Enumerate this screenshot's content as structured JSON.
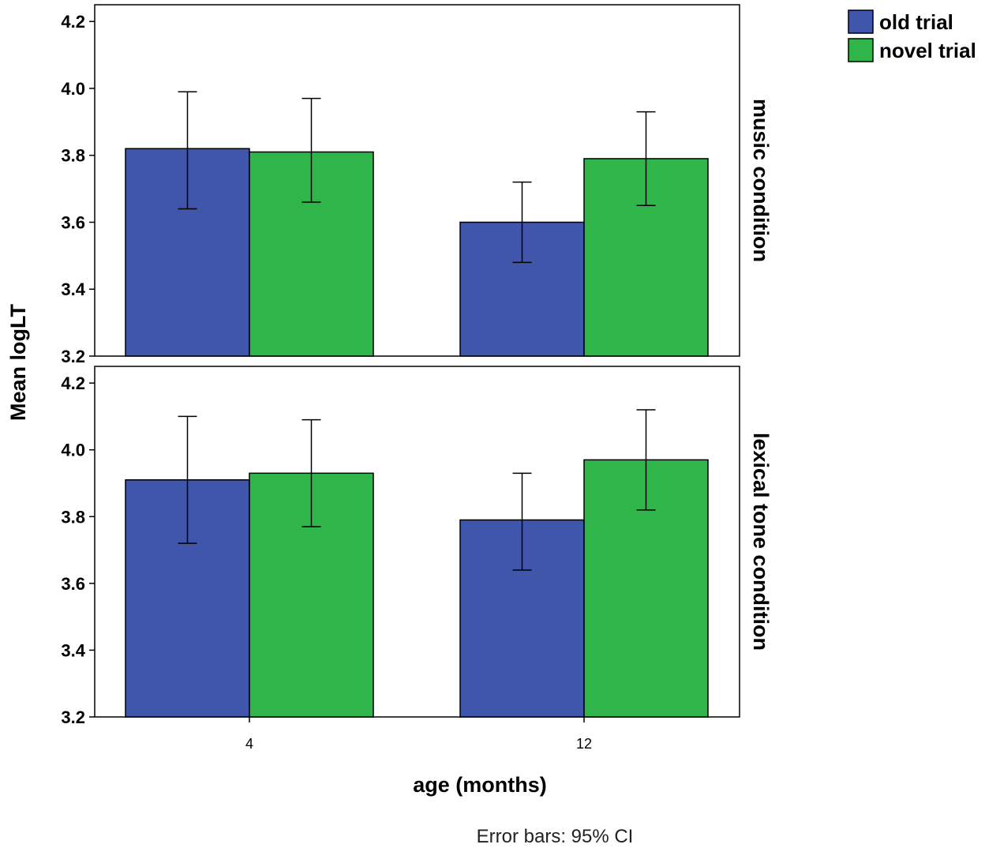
{
  "chart_data": {
    "type": "bar",
    "ylabel": "Mean logLT",
    "xlabel": "age (months)",
    "footnote": "Error bars: 95% CI",
    "categories": [
      "4",
      "12"
    ],
    "ylim": [
      3.2,
      4.25
    ],
    "yticks": [
      "3.2",
      "3.4",
      "3.6",
      "3.8",
      "4.0",
      "4.2"
    ],
    "legend": {
      "position": "top-right",
      "entries": [
        {
          "name": "old trial",
          "color": "#3f56aa"
        },
        {
          "name": "novel trial",
          "color": "#2fb54a"
        }
      ]
    },
    "panels": [
      {
        "label": "music condition",
        "series": [
          {
            "name": "old trial",
            "values": [
              3.82,
              3.6
            ],
            "ci_low": [
              3.64,
              3.48
            ],
            "ci_high": [
              3.99,
              3.72
            ]
          },
          {
            "name": "novel trial",
            "values": [
              3.81,
              3.79
            ],
            "ci_low": [
              3.66,
              3.65
            ],
            "ci_high": [
              3.97,
              3.93
            ]
          }
        ]
      },
      {
        "label": "lexical tone condition",
        "series": [
          {
            "name": "old trial",
            "values": [
              3.91,
              3.79
            ],
            "ci_low": [
              3.72,
              3.64
            ],
            "ci_high": [
              4.1,
              3.93
            ]
          },
          {
            "name": "novel trial",
            "values": [
              3.93,
              3.97
            ],
            "ci_low": [
              3.77,
              3.82
            ],
            "ci_high": [
              4.09,
              4.12
            ]
          }
        ]
      }
    ]
  }
}
